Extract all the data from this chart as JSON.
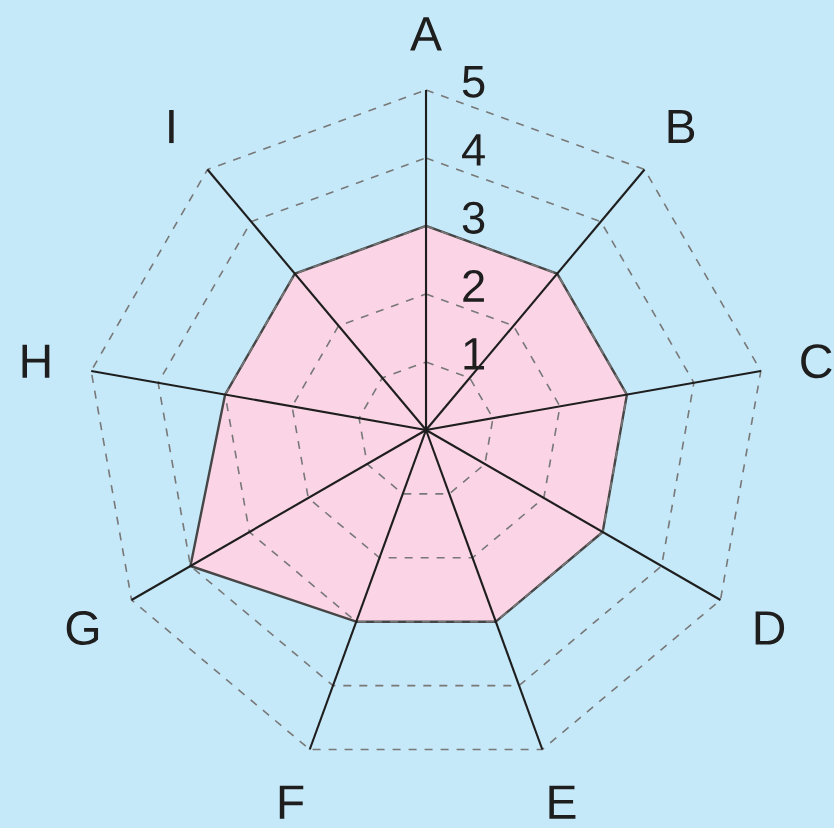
{
  "chart_data": {
    "type": "radar",
    "categories": [
      "A",
      "B",
      "C",
      "D",
      "E",
      "F",
      "G",
      "H",
      "I"
    ],
    "series": [
      {
        "color": "#fbd5e6",
        "values": [
          3,
          3,
          3,
          3,
          3,
          3,
          4,
          3,
          3
        ]
      }
    ],
    "ylim": [
      0,
      5
    ],
    "yticks": [
      1,
      2,
      3,
      4,
      5
    ],
    "grid": true,
    "marker": "none"
  }
}
